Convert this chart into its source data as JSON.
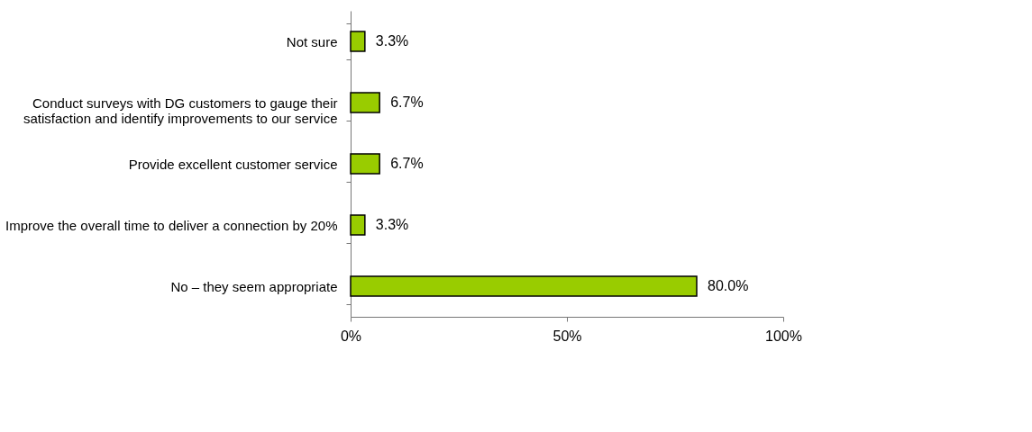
{
  "chart_data": {
    "type": "bar",
    "orientation": "horizontal",
    "categories": [
      "Not sure",
      "Conduct surveys with DG customers to gauge their\nsatisfaction and identify improvements to our service",
      "Provide excellent customer service",
      "Improve the overall time to deliver a connection by 20%",
      "No – they seem appropriate"
    ],
    "values": [
      3.3,
      6.7,
      6.7,
      3.3,
      80.0
    ],
    "value_labels": [
      "3.3%",
      "6.7%",
      "6.7%",
      "3.3%",
      "80.0%"
    ],
    "color": "#99cc00",
    "xlim": [
      0,
      100
    ],
    "xticks": [
      {
        "value": 0,
        "label": "0%"
      },
      {
        "value": 50,
        "label": "50%"
      },
      {
        "value": 100,
        "label": "100%"
      }
    ],
    "grid": false
  }
}
